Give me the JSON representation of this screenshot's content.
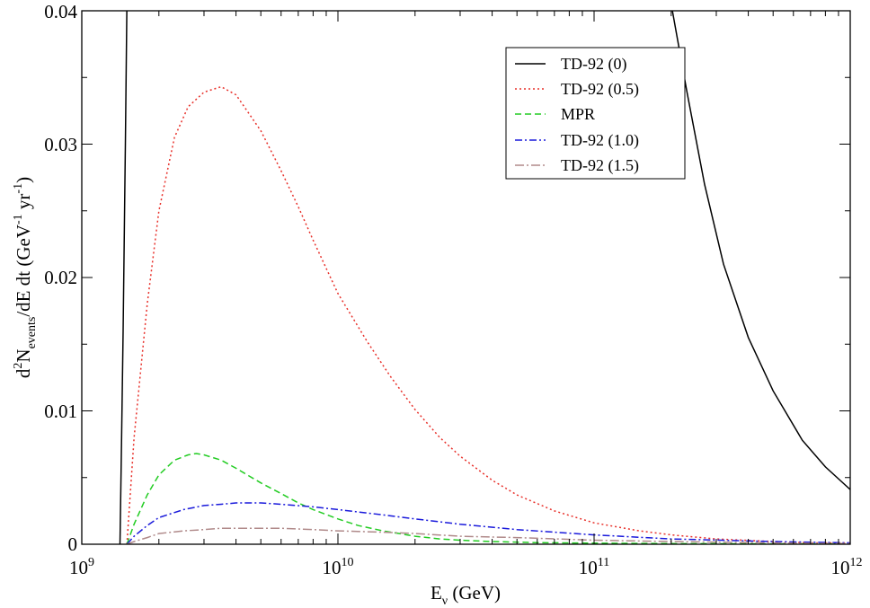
{
  "chart_data": {
    "type": "line",
    "xscale": "log",
    "xlim": [
      1000000000.0,
      1000000000000.0
    ],
    "ylim": [
      0,
      0.04
    ],
    "grid": false,
    "legend_position": "top-right",
    "xlabel": {
      "main": "E",
      "sub": "ν",
      "rest": " (GeV)"
    },
    "ylabel": {
      "p1": "d",
      "sup1": "2",
      "p2": "N",
      "sub1": "events",
      "p3": "/dE dt (GeV",
      "sup2": "-1",
      "p4": " yr",
      "sup3": "-1",
      "p5": ")"
    },
    "x_ticks": [
      {
        "value": 1000000000.0,
        "base": "10",
        "exp": "9"
      },
      {
        "value": 10000000000.0,
        "base": "10",
        "exp": "10"
      },
      {
        "value": 100000000000.0,
        "base": "10",
        "exp": "11"
      },
      {
        "value": 1000000000000.0,
        "base": "10",
        "exp": "12"
      }
    ],
    "y_ticks": [
      {
        "value": 0,
        "label": "0"
      },
      {
        "value": 0.01,
        "label": "0.01"
      },
      {
        "value": 0.02,
        "label": "0.02"
      },
      {
        "value": 0.03,
        "label": "0.03"
      },
      {
        "value": 0.04,
        "label": "0.04"
      }
    ],
    "series": [
      {
        "name": "TD-92 (0)",
        "color": "#000000",
        "dash": "",
        "x": [
          1410000000.0,
          1430000000.0,
          1450000000.0,
          1480000000.0,
          1500000000.0,
          200000000000.0,
          230000000000.0,
          270000000000.0,
          320000000000.0,
          400000000000.0,
          500000000000.0,
          650000000000.0,
          800000000000.0,
          1000000000000.0
        ],
        "y": [
          0,
          0.008,
          0.016,
          0.03,
          0.0405,
          0.0405,
          0.034,
          0.027,
          0.021,
          0.0155,
          0.0115,
          0.0078,
          0.0058,
          0.0041
        ]
      },
      {
        "name": "TD-92 (0.5)",
        "color": "#e8302a",
        "dash": "2,3",
        "x": [
          1500000000.0,
          1600000000.0,
          1800000000.0,
          2000000000.0,
          2300000000.0,
          2600000000.0,
          3000000000.0,
          3500000000.0,
          4000000000.0,
          5000000000.0,
          6000000000.0,
          7000000000.0,
          8000000000.0,
          10000000000.0,
          13000000000.0,
          16000000000.0,
          20000000000.0,
          25000000000.0,
          30000000000.0,
          40000000000.0,
          50000000000.0,
          70000000000.0,
          100000000000.0,
          150000000000.0,
          200000000000.0,
          300000000000.0,
          500000000000.0,
          700000000000.0,
          1000000000000.0
        ],
        "y": [
          0,
          0.008,
          0.018,
          0.025,
          0.0305,
          0.0328,
          0.0339,
          0.0343,
          0.0337,
          0.031,
          0.028,
          0.0253,
          0.0228,
          0.0188,
          0.0152,
          0.0126,
          0.0101,
          0.008,
          0.0066,
          0.0048,
          0.0037,
          0.0025,
          0.0016,
          0.001,
          0.0007,
          0.0004,
          0.0002,
          0.0001,
          0.0001
        ]
      },
      {
        "name": "MPR",
        "color": "#22cc22",
        "dash": "7,4",
        "x": [
          1500000000.0,
          1600000000.0,
          1800000000.0,
          2000000000.0,
          2300000000.0,
          2600000000.0,
          2800000000.0,
          3000000000.0,
          3500000000.0,
          4000000000.0,
          5000000000.0,
          6000000000.0,
          7000000000.0,
          8000000000.0,
          10000000000.0,
          12000000000.0,
          15000000000.0,
          20000000000.0,
          25000000000.0,
          30000000000.0,
          40000000000.0,
          60000000000.0,
          100000000000.0,
          200000000000.0,
          500000000000.0,
          1000000000000.0
        ],
        "y": [
          0,
          0.0015,
          0.0037,
          0.0052,
          0.0063,
          0.0067,
          0.0068,
          0.0067,
          0.0063,
          0.0057,
          0.0046,
          0.0038,
          0.0031,
          0.0026,
          0.0019,
          0.0014,
          0.001,
          0.0006,
          0.0004,
          0.0003,
          0.0002,
          0.00012,
          8e-05,
          5e-05,
          3e-05,
          2e-05
        ]
      },
      {
        "name": "TD-92 (1.0)",
        "color": "#1a1adb",
        "dash": "8,3,2,3",
        "x": [
          1500000000.0,
          1600000000.0,
          1800000000.0,
          2000000000.0,
          2500000000.0,
          3000000000.0,
          3500000000.0,
          4000000000.0,
          4500000000.0,
          5000000000.0,
          6000000000.0,
          8000000000.0,
          10000000000.0,
          15000000000.0,
          20000000000.0,
          30000000000.0,
          50000000000.0,
          100000000000.0,
          200000000000.0,
          500000000000.0,
          1000000000000.0
        ],
        "y": [
          0,
          0.0006,
          0.0014,
          0.002,
          0.0026,
          0.0029,
          0.003,
          0.0031,
          0.0031,
          0.0031,
          0.003,
          0.0028,
          0.0026,
          0.0022,
          0.0019,
          0.0015,
          0.0011,
          0.0007,
          0.0004,
          0.0002,
          0.0001
        ]
      },
      {
        "name": "TD-92 (1.5)",
        "color": "#b08a8a",
        "dash": "10,3,2,3",
        "x": [
          1500000000.0,
          1600000000.0,
          1800000000.0,
          2000000000.0,
          2500000000.0,
          3000000000.0,
          3500000000.0,
          4000000000.0,
          5000000000.0,
          6000000000.0,
          8000000000.0,
          10000000000.0,
          15000000000.0,
          20000000000.0,
          30000000000.0,
          50000000000.0,
          100000000000.0,
          200000000000.0,
          500000000000.0,
          1000000000000.0
        ],
        "y": [
          0,
          0.0002,
          0.0005,
          0.0008,
          0.001,
          0.0011,
          0.0012,
          0.0012,
          0.0012,
          0.0012,
          0.0011,
          0.001,
          0.0009,
          0.0008,
          0.0006,
          0.0005,
          0.0003,
          0.0002,
          0.0001,
          5e-05
        ]
      }
    ]
  }
}
